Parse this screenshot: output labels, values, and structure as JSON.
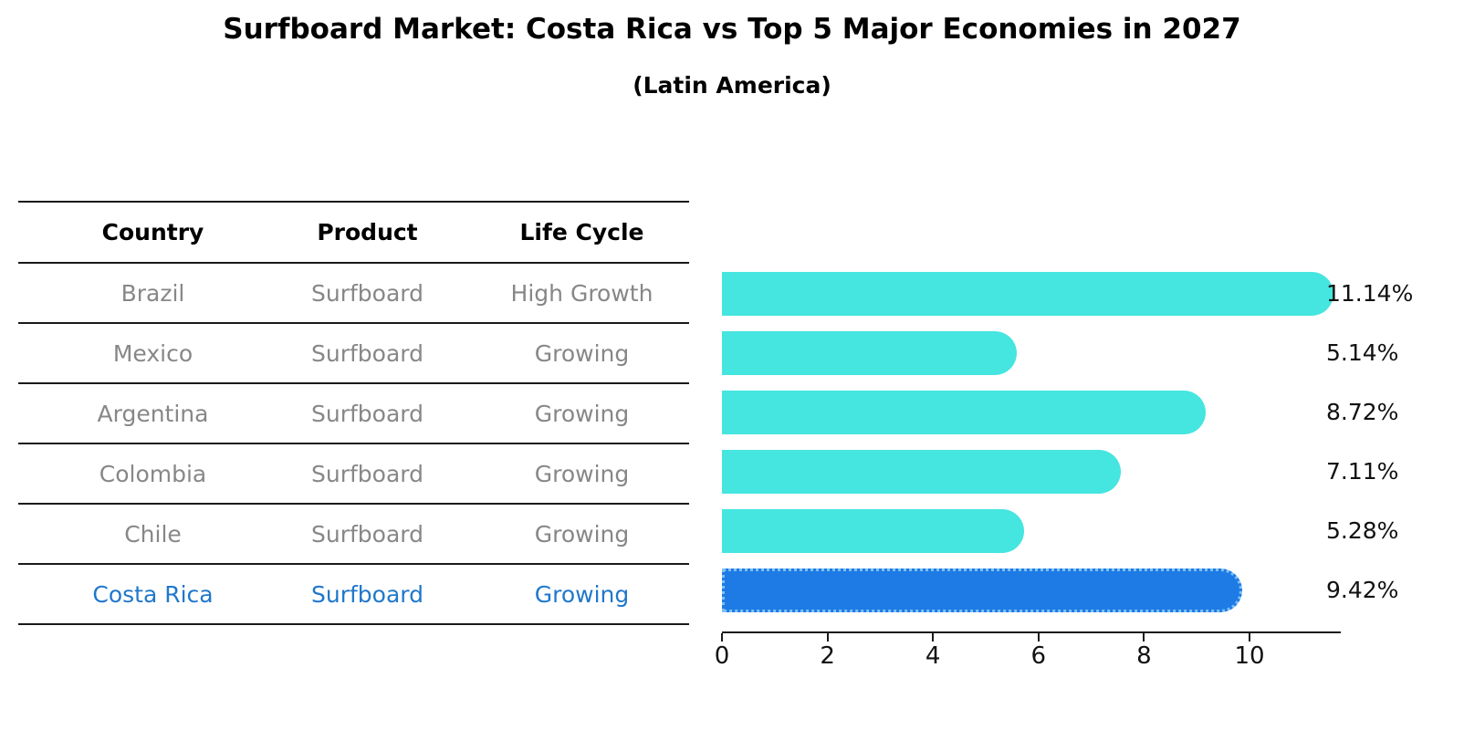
{
  "title": "Surfboard Market: Costa Rica vs Top 5 Major Economies in 2027",
  "subtitle": "(Latin America)",
  "table": {
    "headers": [
      "Country",
      "Product",
      "Life Cycle"
    ],
    "rows": [
      {
        "country": "Brazil",
        "product": "Surfboard",
        "life_cycle": "High Growth",
        "highlight": false
      },
      {
        "country": "Mexico",
        "product": "Surfboard",
        "life_cycle": "Growing",
        "highlight": false
      },
      {
        "country": "Argentina",
        "product": "Surfboard",
        "life_cycle": "Growing",
        "highlight": false
      },
      {
        "country": "Colombia",
        "product": "Surfboard",
        "life_cycle": "Growing",
        "highlight": false
      },
      {
        "country": "Chile",
        "product": "Surfboard",
        "life_cycle": "Growing",
        "highlight": true
      }
    ],
    "highlight_row": {
      "country": "Costa Rica",
      "product": "Surfboard",
      "life_cycle": "Growing"
    }
  },
  "chart_data": {
    "type": "bar",
    "orientation": "horizontal",
    "categories": [
      "Brazil",
      "Mexico",
      "Argentina",
      "Colombia",
      "Chile",
      "Costa Rica"
    ],
    "values": [
      11.14,
      5.14,
      8.72,
      7.11,
      5.28,
      9.42
    ],
    "data_labels": [
      "11.14%",
      "5.14%",
      "8.72%",
      "7.11%",
      "5.28%",
      "9.42%"
    ],
    "highlight_category": "Costa Rica",
    "x_ticks": [
      0,
      2,
      4,
      6,
      8,
      10
    ],
    "xlim": [
      0,
      11.7
    ],
    "grid": false,
    "legend": false,
    "title": "Surfboard Market: Costa Rica vs Top 5 Major Economies in 2027",
    "xlabel": "",
    "ylabel": ""
  },
  "colors": {
    "bar": "#45e5e0",
    "bar_highlight": "#1e7be5",
    "highlight_text": "#1f78cc",
    "table_text": "#878787",
    "header_text": "#000000",
    "axis": "#1a1a1a"
  }
}
